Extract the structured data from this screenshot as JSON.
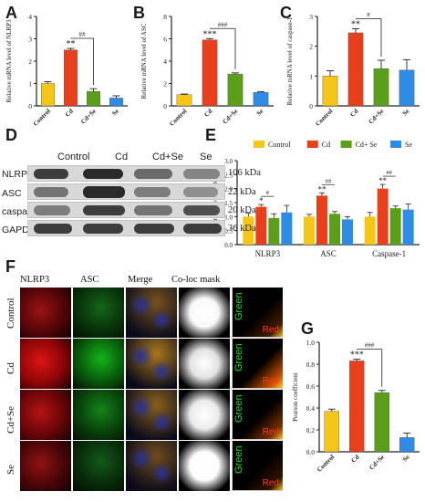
{
  "panels": {
    "A": "A",
    "B": "B",
    "C": "C",
    "D": "D",
    "E": "E",
    "F": "F",
    "G": "G"
  },
  "chart_data": [
    {
      "id": "A",
      "type": "bar",
      "categories": [
        "Control",
        "Cd",
        "Cd+Se",
        "Se"
      ],
      "values": [
        1.0,
        2.5,
        0.65,
        0.35
      ],
      "errors": [
        0.08,
        0.07,
        0.12,
        0.1
      ],
      "colors": [
        "#F5C518",
        "#E8401C",
        "#5A9E1A",
        "#2E8BE6"
      ],
      "ylabel": "Relative  mRNA  level of NLRP3",
      "ylim": [
        0,
        4
      ],
      "yticks": [
        "0",
        "1",
        "2",
        "3",
        "4"
      ],
      "annotations": [
        {
          "text": "**",
          "bar": 1
        },
        {
          "text": "##",
          "from": 1,
          "to": 2
        }
      ]
    },
    {
      "id": "B",
      "type": "bar",
      "categories": [
        "Control",
        "Cd",
        "Cd+Se",
        "Se"
      ],
      "values": [
        1.0,
        5.9,
        2.85,
        1.2
      ],
      "errors": [
        0.06,
        0.12,
        0.1,
        0.06
      ],
      "colors": [
        "#F5C518",
        "#E8401C",
        "#5A9E1A",
        "#2E8BE6"
      ],
      "ylabel": "Relative  mRNA  level of ASC",
      "ylim": [
        0,
        8
      ],
      "yticks": [
        "0",
        "2",
        "4",
        "6",
        "8"
      ],
      "annotations": [
        {
          "text": "***",
          "bar": 1
        },
        {
          "text": "###",
          "from": 1,
          "to": 2
        }
      ]
    },
    {
      "id": "C",
      "type": "bar",
      "categories": [
        "Control",
        "Cd",
        "Cd+Se",
        "Se"
      ],
      "values": [
        1.0,
        2.45,
        1.25,
        1.2
      ],
      "errors": [
        0.18,
        0.14,
        0.28,
        0.35
      ],
      "colors": [
        "#F5C518",
        "#E8401C",
        "#5A9E1A",
        "#2E8BE6"
      ],
      "ylabel": "Relative  mRNA  level of caspase-1",
      "ylim": [
        0,
        3
      ],
      "yticks": [
        "0",
        "1",
        "2",
        "3"
      ],
      "annotations": [
        {
          "text": "**",
          "bar": 1
        },
        {
          "text": "#",
          "from": 1,
          "to": 2
        }
      ]
    },
    {
      "id": "E",
      "type": "bar",
      "categories": [
        "NLRP3",
        "ASC",
        "Caspase-1"
      ],
      "series": [
        {
          "name": "Control",
          "color": "#F5C518",
          "values": [
            1.0,
            1.0,
            1.0
          ],
          "errors": [
            0.12,
            0.08,
            0.15
          ]
        },
        {
          "name": "Cd",
          "color": "#E8401C",
          "values": [
            1.35,
            1.75,
            2.0
          ],
          "errors": [
            0.08,
            0.1,
            0.15
          ]
        },
        {
          "name": "Cd+ Se",
          "color": "#5A9E1A",
          "values": [
            0.95,
            1.1,
            1.3
          ],
          "errors": [
            0.15,
            0.08,
            0.08
          ]
        },
        {
          "name": "Se",
          "color": "#2E8BE6",
          "values": [
            1.15,
            0.9,
            1.25
          ],
          "errors": [
            0.25,
            0.1,
            0.2
          ]
        }
      ],
      "ylabel": "Protein expression levels",
      "ylim": [
        0,
        3
      ],
      "yticks": [
        "0.0",
        "0.5",
        "1.0",
        "1.5",
        "2.0",
        "2.5",
        "3.0"
      ],
      "legend": "top",
      "annotations": [
        {
          "group": 0,
          "star": "*",
          "hash": "#"
        },
        {
          "group": 1,
          "star": "**",
          "hash": "##"
        },
        {
          "group": 2,
          "star": "**",
          "hash": "##"
        }
      ]
    },
    {
      "id": "G",
      "type": "bar",
      "categories": [
        "Control",
        "Cd",
        "Cd+Se",
        "Se"
      ],
      "values": [
        0.37,
        0.83,
        0.54,
        0.13
      ],
      "errors": [
        0.02,
        0.015,
        0.02,
        0.04
      ],
      "colors": [
        "#F5C518",
        "#E8401C",
        "#5A9E1A",
        "#2E8BE6"
      ],
      "ylabel": "Pearson coefficient",
      "ylim": [
        0,
        1.0
      ],
      "yticks": [
        "0.0",
        "0.2",
        "0.4",
        "0.6",
        "0.8",
        "1.0"
      ],
      "annotations": [
        {
          "text": "***",
          "bar": 1
        },
        {
          "text": "###",
          "from": 1,
          "to": 2
        }
      ]
    }
  ],
  "western_blot": {
    "columns": [
      "Control",
      "Cd",
      "Cd+Se",
      "Se"
    ],
    "rows": [
      {
        "label": "NLRP3",
        "size": "106 kDa"
      },
      {
        "label": "ASC",
        "size": "22 kDa"
      },
      {
        "label": "caspase-1",
        "size": "20 kDa"
      },
      {
        "label": "GAPDH",
        "size": "36 kDa"
      }
    ]
  },
  "fluorescence": {
    "columns": [
      "NLRP3",
      "ASC",
      "Merge",
      "Co-loc mask"
    ],
    "rows": [
      "Control",
      "Cd",
      "Cd+Se",
      "Se"
    ],
    "scatter_axis_green": "Green",
    "scatter_axis_red": "Red"
  }
}
